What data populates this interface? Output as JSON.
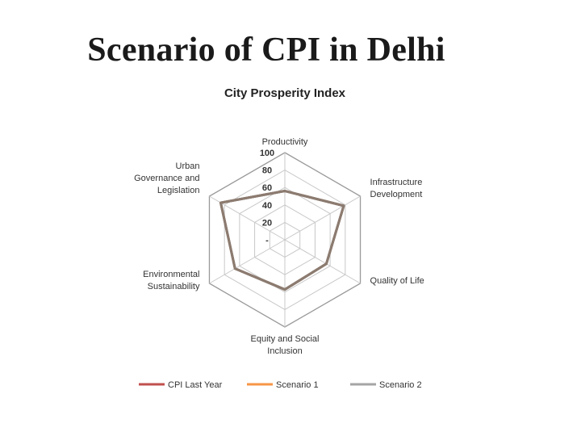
{
  "slide": {
    "title": "Scenario of CPI in Delhi"
  },
  "chart_data": {
    "type": "radar",
    "title": "City Prosperity Index",
    "categories": [
      "Productivity",
      "Infrastructure Development",
      "Quality of Life",
      "Equity and Social Inclusion",
      "Environmental Sustainability",
      "Urban Governance and Legislation"
    ],
    "category_label_lines": [
      [
        "Productivity"
      ],
      [
        "Infrastructure",
        "Development"
      ],
      [
        "Quality of Life"
      ],
      [
        "Equity and Social",
        "Inclusion"
      ],
      [
        "Environmental",
        "Sustainability"
      ],
      [
        "Urban",
        "Governance and",
        "Legislation"
      ]
    ],
    "ticks": [
      "-",
      "20",
      "40",
      "60",
      "80",
      "100"
    ],
    "tick_values": [
      0,
      20,
      40,
      60,
      80,
      100
    ],
    "rlim": [
      0,
      100
    ],
    "grid": true,
    "legend_position": "bottom",
    "series": [
      {
        "name": "CPI Last Year",
        "color": "#c0504d",
        "values": [
          56,
          78,
          55,
          57,
          66,
          85
        ]
      },
      {
        "name": "Scenario 1",
        "color": "#f79646",
        "values": [
          56,
          78,
          55,
          57,
          66,
          85
        ]
      },
      {
        "name": "Scenario 2",
        "color": "#a5a5a5",
        "values": [
          56,
          78,
          55,
          57,
          66,
          85
        ]
      }
    ],
    "visible_line_color": "#8c7b70"
  }
}
